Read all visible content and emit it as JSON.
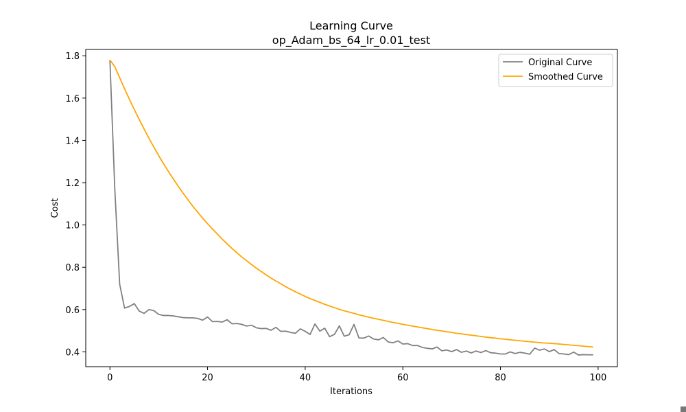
{
  "chart_data": {
    "type": "line",
    "title": "Learning Curve",
    "subtitle": "op_Adam_bs_64_lr_0.01_test",
    "xlabel": "Iterations",
    "ylabel": "Cost",
    "xlim": [
      -4.95,
      103.95
    ],
    "ylim": [
      0.33,
      1.83
    ],
    "xticks": [
      0,
      20,
      40,
      60,
      80,
      100
    ],
    "yticks": [
      0.4,
      0.6,
      0.8,
      1.0,
      1.2,
      1.4,
      1.6,
      1.8
    ],
    "ytick_labels": [
      "0.4",
      "0.6",
      "0.8",
      "1.0",
      "1.2",
      "1.4",
      "1.6",
      "1.8"
    ],
    "grid": false,
    "legend_position": "top-right",
    "series": [
      {
        "name": "Original Curve",
        "color": "#808080",
        "values": [
          1.78,
          1.17,
          0.72,
          0.607,
          0.615,
          0.628,
          0.593,
          0.582,
          0.6,
          0.595,
          0.577,
          0.572,
          0.572,
          0.57,
          0.566,
          0.562,
          0.561,
          0.561,
          0.558,
          0.55,
          0.565,
          0.543,
          0.544,
          0.541,
          0.552,
          0.533,
          0.534,
          0.53,
          0.522,
          0.526,
          0.514,
          0.51,
          0.511,
          0.502,
          0.516,
          0.497,
          0.498,
          0.492,
          0.488,
          0.509,
          0.497,
          0.482,
          0.532,
          0.498,
          0.512,
          0.472,
          0.483,
          0.523,
          0.474,
          0.481,
          0.53,
          0.466,
          0.465,
          0.475,
          0.461,
          0.457,
          0.468,
          0.447,
          0.443,
          0.452,
          0.437,
          0.439,
          0.43,
          0.43,
          0.421,
          0.417,
          0.414,
          0.423,
          0.405,
          0.409,
          0.401,
          0.411,
          0.398,
          0.404,
          0.395,
          0.404,
          0.397,
          0.406,
          0.396,
          0.394,
          0.39,
          0.39,
          0.4,
          0.392,
          0.398,
          0.394,
          0.389,
          0.418,
          0.408,
          0.414,
          0.401,
          0.411,
          0.392,
          0.39,
          0.387,
          0.399,
          0.385,
          0.387,
          0.386,
          0.386
        ]
      },
      {
        "name": "Smoothed Curve",
        "color": "#ffa500",
        "values": [
          1.78,
          1.749,
          1.696,
          1.644,
          1.594,
          1.546,
          1.499,
          1.454,
          1.41,
          1.368,
          1.328,
          1.289,
          1.252,
          1.217,
          1.183,
          1.15,
          1.119,
          1.088,
          1.06,
          1.032,
          1.006,
          0.981,
          0.957,
          0.933,
          0.911,
          0.889,
          0.869,
          0.849,
          0.831,
          0.813,
          0.796,
          0.78,
          0.764,
          0.749,
          0.735,
          0.722,
          0.708,
          0.696,
          0.684,
          0.673,
          0.662,
          0.652,
          0.643,
          0.634,
          0.625,
          0.617,
          0.609,
          0.601,
          0.594,
          0.588,
          0.582,
          0.575,
          0.57,
          0.564,
          0.559,
          0.554,
          0.549,
          0.544,
          0.539,
          0.535,
          0.53,
          0.526,
          0.522,
          0.518,
          0.514,
          0.51,
          0.506,
          0.502,
          0.499,
          0.495,
          0.492,
          0.488,
          0.485,
          0.482,
          0.479,
          0.476,
          0.473,
          0.47,
          0.467,
          0.465,
          0.462,
          0.46,
          0.457,
          0.455,
          0.453,
          0.45,
          0.448,
          0.446,
          0.444,
          0.442,
          0.441,
          0.439,
          0.437,
          0.435,
          0.433,
          0.431,
          0.429,
          0.427,
          0.425,
          0.423
        ]
      }
    ]
  }
}
